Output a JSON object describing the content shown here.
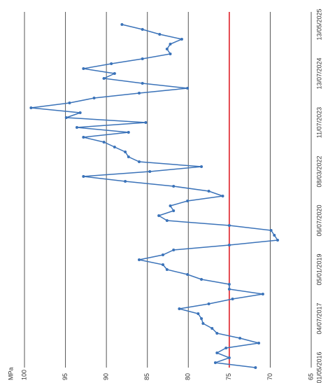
{
  "chart_data": {
    "type": "line",
    "y_label": "MPa",
    "categories": [
      "01/05/2016",
      null,
      null,
      null,
      null,
      null,
      null,
      null,
      null,
      null,
      "04/07/2017",
      null,
      null,
      null,
      null,
      null,
      null,
      null,
      null,
      null,
      "05/01/2019",
      null,
      null,
      null,
      null,
      null,
      null,
      null,
      null,
      null,
      "06/07/2020",
      null,
      null,
      null,
      null,
      null,
      null,
      null,
      null,
      null,
      "08/03/2022",
      null,
      null,
      null,
      null,
      null,
      null,
      null,
      null,
      null,
      "11/07/2023",
      null,
      null,
      null,
      null,
      null,
      null,
      null,
      null,
      null,
      "13/07/2024",
      null,
      null,
      null,
      null,
      null,
      null,
      null,
      null,
      null,
      "13/05/2025"
    ],
    "series": [
      {
        "name": "MPa",
        "color": "#3b73b9",
        "values": [
          71.8,
          76.7,
          75.0,
          76.5,
          75.4,
          71.4,
          73.7,
          76.5,
          77.1,
          78.2,
          78.4,
          78.8,
          81.1,
          77.5,
          74.6,
          70.9,
          75.0,
          75.0,
          78.4,
          80.1,
          82.6,
          83.1,
          86.0,
          83.1,
          81.8,
          75.0,
          69.1,
          69.5,
          69.9,
          75.0,
          82.6,
          83.6,
          81.8,
          82.2,
          80.1,
          75.8,
          77.5,
          81.8,
          87.7,
          92.8,
          84.7,
          78.4,
          86.0,
          87.3,
          87.7,
          89.0,
          90.3,
          92.8,
          87.3,
          93.6,
          85.2,
          94.9,
          93.2,
          99.2,
          94.5,
          91.5,
          86.0,
          80.1,
          85.6,
          90.3,
          89.0,
          92.8,
          89.4,
          85.6,
          82.2,
          82.6,
          82.2,
          80.8,
          83.5,
          85.6,
          88.1
        ]
      }
    ],
    "ylim": [
      65,
      100
    ],
    "yticks": [
      65,
      70,
      75,
      80,
      85,
      90,
      95,
      100
    ],
    "grid": true,
    "grid_color": "#555555",
    "reference_line": {
      "value": 75,
      "color": "#e0141e"
    }
  }
}
